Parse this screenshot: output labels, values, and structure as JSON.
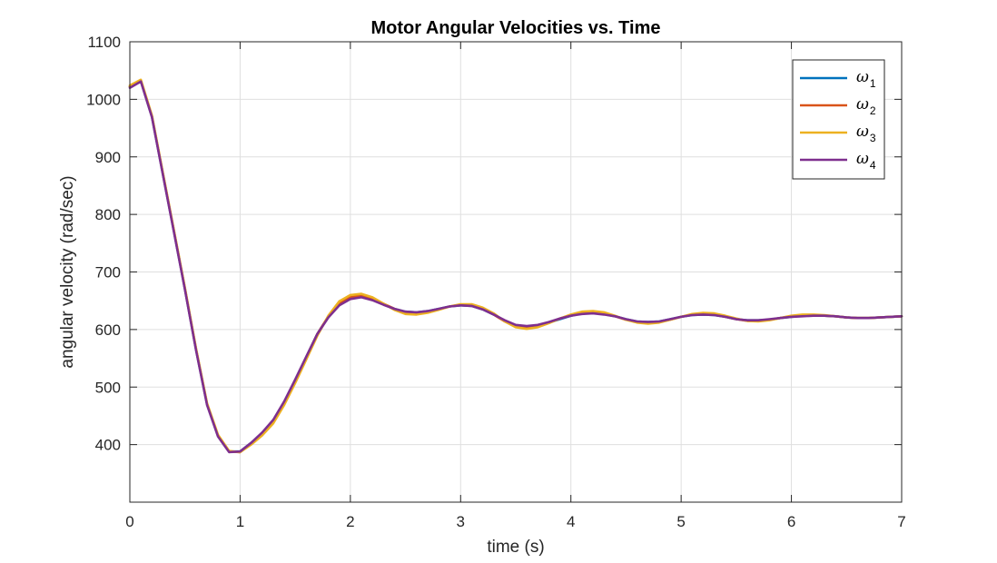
{
  "chart_data": {
    "type": "line",
    "title": "Motor Angular Velocities vs. Time",
    "xlabel": "time (s)",
    "ylabel": "angular velocity (rad/sec)",
    "xlim": [
      0,
      7
    ],
    "ylim": [
      300,
      1100
    ],
    "xticks": [
      0,
      1,
      2,
      3,
      4,
      5,
      6,
      7
    ],
    "yticks": [
      400,
      500,
      600,
      700,
      800,
      900,
      1000,
      1100
    ],
    "grid": true,
    "legend_position": "top-right",
    "x": [
      0,
      0.1,
      0.2,
      0.3,
      0.4,
      0.5,
      0.6,
      0.7,
      0.8,
      0.9,
      1.0,
      1.1,
      1.2,
      1.3,
      1.4,
      1.5,
      1.6,
      1.7,
      1.8,
      1.9,
      2.0,
      2.1,
      2.2,
      2.3,
      2.4,
      2.5,
      2.6,
      2.7,
      2.8,
      2.9,
      3.0,
      3.1,
      3.2,
      3.3,
      3.4,
      3.5,
      3.6,
      3.7,
      3.8,
      3.9,
      4.0,
      4.1,
      4.2,
      4.3,
      4.4,
      4.5,
      4.6,
      4.7,
      4.8,
      4.9,
      5.0,
      5.1,
      5.2,
      5.3,
      5.4,
      5.5,
      5.6,
      5.7,
      5.8,
      5.9,
      6.0,
      6.1,
      6.2,
      6.3,
      6.4,
      6.5,
      6.6,
      6.7,
      6.8,
      6.9,
      7.0
    ],
    "series": [
      {
        "name": "ω",
        "subscript": "1",
        "color": "#0072BD",
        "values": [
          1022,
          1032,
          970,
          870,
          770,
          670,
          565,
          470,
          415,
          388,
          388,
          403,
          420,
          442,
          474,
          512,
          552,
          592,
          622,
          643,
          654,
          657,
          652,
          644,
          636,
          631,
          630,
          632,
          636,
          640,
          642,
          641,
          635,
          626,
          615,
          607,
          605,
          607,
          612,
          618,
          624,
          628,
          629,
          627,
          623,
          618,
          614,
          613,
          614,
          618,
          622,
          625,
          626,
          625,
          622,
          618,
          616,
          616,
          617,
          620,
          622,
          624,
          624,
          624,
          623,
          621,
          620,
          620,
          621,
          622,
          623
        ]
      },
      {
        "name": "ω",
        "subscript": "2",
        "color": "#D95319",
        "values": [
          1022,
          1033,
          971,
          871,
          771,
          671,
          566,
          471,
          416,
          388,
          387,
          402,
          419,
          441,
          473,
          511,
          552,
          592,
          623,
          645,
          656,
          659,
          654,
          645,
          636,
          630,
          629,
          631,
          635,
          640,
          643,
          642,
          636,
          626,
          614,
          605,
          603,
          606,
          612,
          619,
          625,
          629,
          630,
          628,
          623,
          617,
          613,
          611,
          613,
          617,
          622,
          626,
          627,
          626,
          622,
          618,
          615,
          615,
          617,
          620,
          623,
          625,
          625,
          624,
          623,
          621,
          620,
          620,
          621,
          622,
          623
        ]
      },
      {
        "name": "ω",
        "subscript": "3",
        "color": "#EDB120",
        "values": [
          1024,
          1034,
          972,
          872,
          772,
          672,
          567,
          472,
          417,
          389,
          387,
          400,
          416,
          437,
          469,
          507,
          548,
          589,
          624,
          649,
          660,
          662,
          656,
          645,
          634,
          627,
          626,
          629,
          634,
          640,
          644,
          644,
          638,
          628,
          614,
          604,
          601,
          604,
          611,
          619,
          626,
          631,
          632,
          630,
          624,
          617,
          612,
          610,
          612,
          617,
          622,
          627,
          629,
          628,
          624,
          619,
          615,
          614,
          616,
          620,
          624,
          626,
          626,
          625,
          623,
          621,
          620,
          620,
          621,
          622,
          623
        ]
      },
      {
        "name": "ω",
        "subscript": "4",
        "color": "#7E2F8E",
        "values": [
          1020,
          1031,
          969,
          869,
          769,
          669,
          564,
          469,
          414,
          387,
          388,
          403,
          421,
          443,
          475,
          513,
          553,
          592,
          621,
          642,
          653,
          656,
          651,
          643,
          636,
          631,
          630,
          632,
          636,
          640,
          642,
          641,
          635,
          626,
          616,
          608,
          606,
          608,
          613,
          619,
          624,
          627,
          628,
          626,
          623,
          618,
          614,
          613,
          614,
          618,
          622,
          625,
          626,
          625,
          622,
          618,
          616,
          616,
          618,
          620,
          622,
          623,
          624,
          624,
          623,
          621,
          620,
          620,
          621,
          622,
          623
        ]
      }
    ]
  }
}
